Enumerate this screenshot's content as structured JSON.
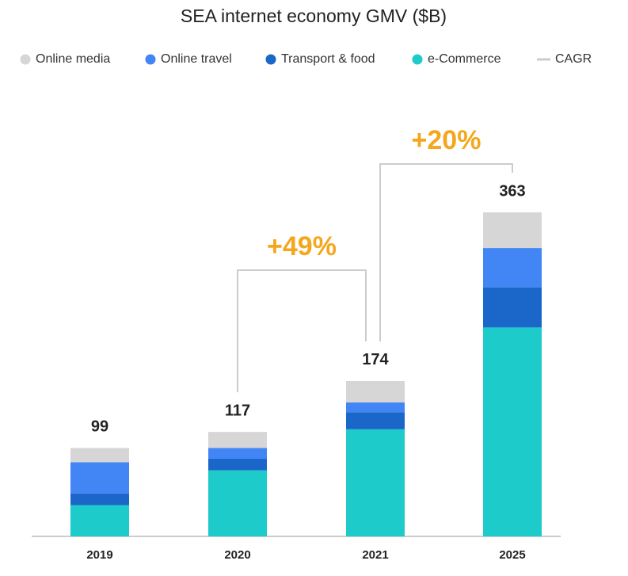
{
  "chart_data": {
    "type": "stacked_bar",
    "title": "SEA internet economy GMV ($B)",
    "categories": [
      "2019",
      "2020",
      "2021",
      "2025"
    ],
    "series": [
      {
        "name": "e-Commerce",
        "color": "#1ccbca",
        "values": [
          35,
          74,
          120,
          234
        ]
      },
      {
        "name": "Transport & food",
        "color": "#1a66c9",
        "values": [
          13,
          13,
          19,
          45
        ]
      },
      {
        "name": "Online travel",
        "color": "#4285f4",
        "values": [
          35,
          12,
          11,
          44
        ]
      },
      {
        "name": "Online media",
        "color": "#d6d6d6",
        "values": [
          16,
          18,
          24,
          40
        ]
      }
    ],
    "totals": [
      99,
      117,
      174,
      363
    ],
    "cagr_label": "CAGR",
    "annotations": [
      {
        "text": "+49%",
        "from": "2020",
        "to": "2021"
      },
      {
        "text": "+20%",
        "from": "2021",
        "to": "2025"
      }
    ]
  }
}
